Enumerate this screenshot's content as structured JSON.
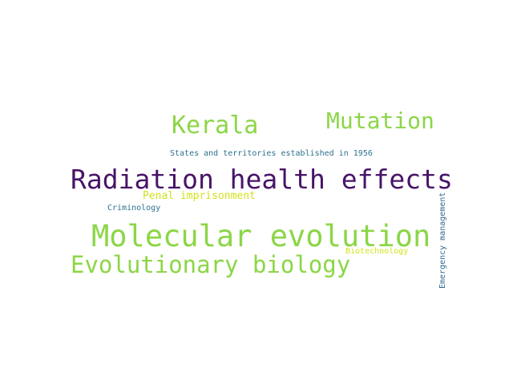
{
  "words": [
    {
      "text": "Molecular evolution",
      "color": "#8bd646"
    },
    {
      "text": "Radiation health effects",
      "color": "#481467"
    },
    {
      "text": "Evolutionary biology",
      "color": "#8bd646"
    },
    {
      "text": "Kerala",
      "color": "#8bd646"
    },
    {
      "text": "Mutation",
      "color": "#8bd646"
    },
    {
      "text": "Penal imprisonment",
      "color": "#d2e21b"
    },
    {
      "text": "States and territories established in 1956",
      "color": "#2c728e"
    },
    {
      "text": "Criminology",
      "color": "#2c728e"
    },
    {
      "text": "Biotechnology",
      "color": "#d2e21b"
    },
    {
      "text": "Emergency management",
      "color": "#31688e"
    }
  ]
}
